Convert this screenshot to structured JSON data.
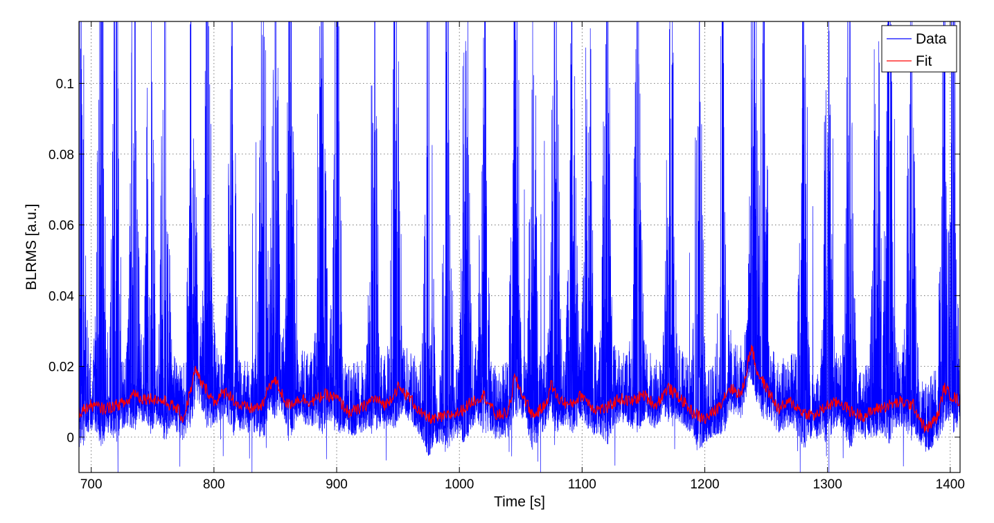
{
  "chart_data": {
    "type": "line",
    "xlabel": "Time [s]",
    "ylabel": "BLRMS [a.u.]",
    "xlim": [
      690,
      1408
    ],
    "ylim": [
      -0.01,
      0.1175
    ],
    "xticks": [
      700,
      800,
      900,
      1000,
      1100,
      1200,
      1300,
      1400
    ],
    "xtick_labels": [
      "700",
      "800",
      "900",
      "1000",
      "1100",
      "1200",
      "1300",
      "1400"
    ],
    "yticks": [
      0,
      0.02,
      0.04,
      0.06,
      0.08,
      0.1
    ],
    "ytick_labels": [
      "0",
      "0.02",
      "0.04",
      "0.06",
      "0.08",
      "0.1"
    ],
    "grid": true,
    "legend_position": "top-right",
    "series": [
      {
        "name": "Data",
        "color": "#0000ff",
        "description": "dense noisy BLRMS signal with bursts",
        "burst_centers": [
          692,
          708,
          720,
          735,
          748,
          760,
          782,
          795,
          815,
          840,
          850,
          862,
          888,
          900,
          930,
          948,
          975,
          990,
          1005,
          1020,
          1045,
          1060,
          1078,
          1092,
          1105,
          1120,
          1145,
          1172,
          1195,
          1215,
          1240,
          1248,
          1280,
          1300,
          1318,
          1340,
          1350,
          1368,
          1395,
          1402
        ]
      },
      {
        "name": "Fit",
        "color": "#ff0000",
        "x": [
          690,
          700,
          710,
          720,
          730,
          735,
          740,
          750,
          760,
          770,
          775,
          780,
          785,
          790,
          795,
          800,
          810,
          820,
          830,
          840,
          845,
          850,
          860,
          870,
          880,
          890,
          900,
          910,
          920,
          930,
          940,
          950,
          960,
          970,
          980,
          990,
          1000,
          1010,
          1020,
          1030,
          1040,
          1045,
          1050,
          1060,
          1070,
          1075,
          1080,
          1090,
          1100,
          1110,
          1120,
          1130,
          1140,
          1150,
          1160,
          1170,
          1180,
          1190,
          1200,
          1210,
          1220,
          1230,
          1238,
          1242,
          1250,
          1260,
          1270,
          1280,
          1290,
          1300,
          1310,
          1320,
          1330,
          1340,
          1350,
          1360,
          1370,
          1380,
          1390,
          1395,
          1400,
          1408
        ],
        "y": [
          0.007,
          0.009,
          0.008,
          0.009,
          0.01,
          0.013,
          0.011,
          0.011,
          0.01,
          0.008,
          0.005,
          0.012,
          0.019,
          0.015,
          0.013,
          0.01,
          0.013,
          0.009,
          0.008,
          0.009,
          0.015,
          0.016,
          0.009,
          0.011,
          0.01,
          0.012,
          0.011,
          0.007,
          0.008,
          0.011,
          0.009,
          0.014,
          0.011,
          0.006,
          0.005,
          0.006,
          0.007,
          0.01,
          0.012,
          0.006,
          0.007,
          0.017,
          0.013,
          0.006,
          0.009,
          0.015,
          0.011,
          0.009,
          0.012,
          0.008,
          0.008,
          0.011,
          0.01,
          0.012,
          0.009,
          0.014,
          0.011,
          0.007,
          0.005,
          0.008,
          0.014,
          0.012,
          0.026,
          0.019,
          0.014,
          0.008,
          0.01,
          0.007,
          0.006,
          0.009,
          0.01,
          0.007,
          0.006,
          0.008,
          0.009,
          0.01,
          0.009,
          0.002,
          0.006,
          0.014,
          0.012,
          0.01
        ]
      }
    ]
  }
}
